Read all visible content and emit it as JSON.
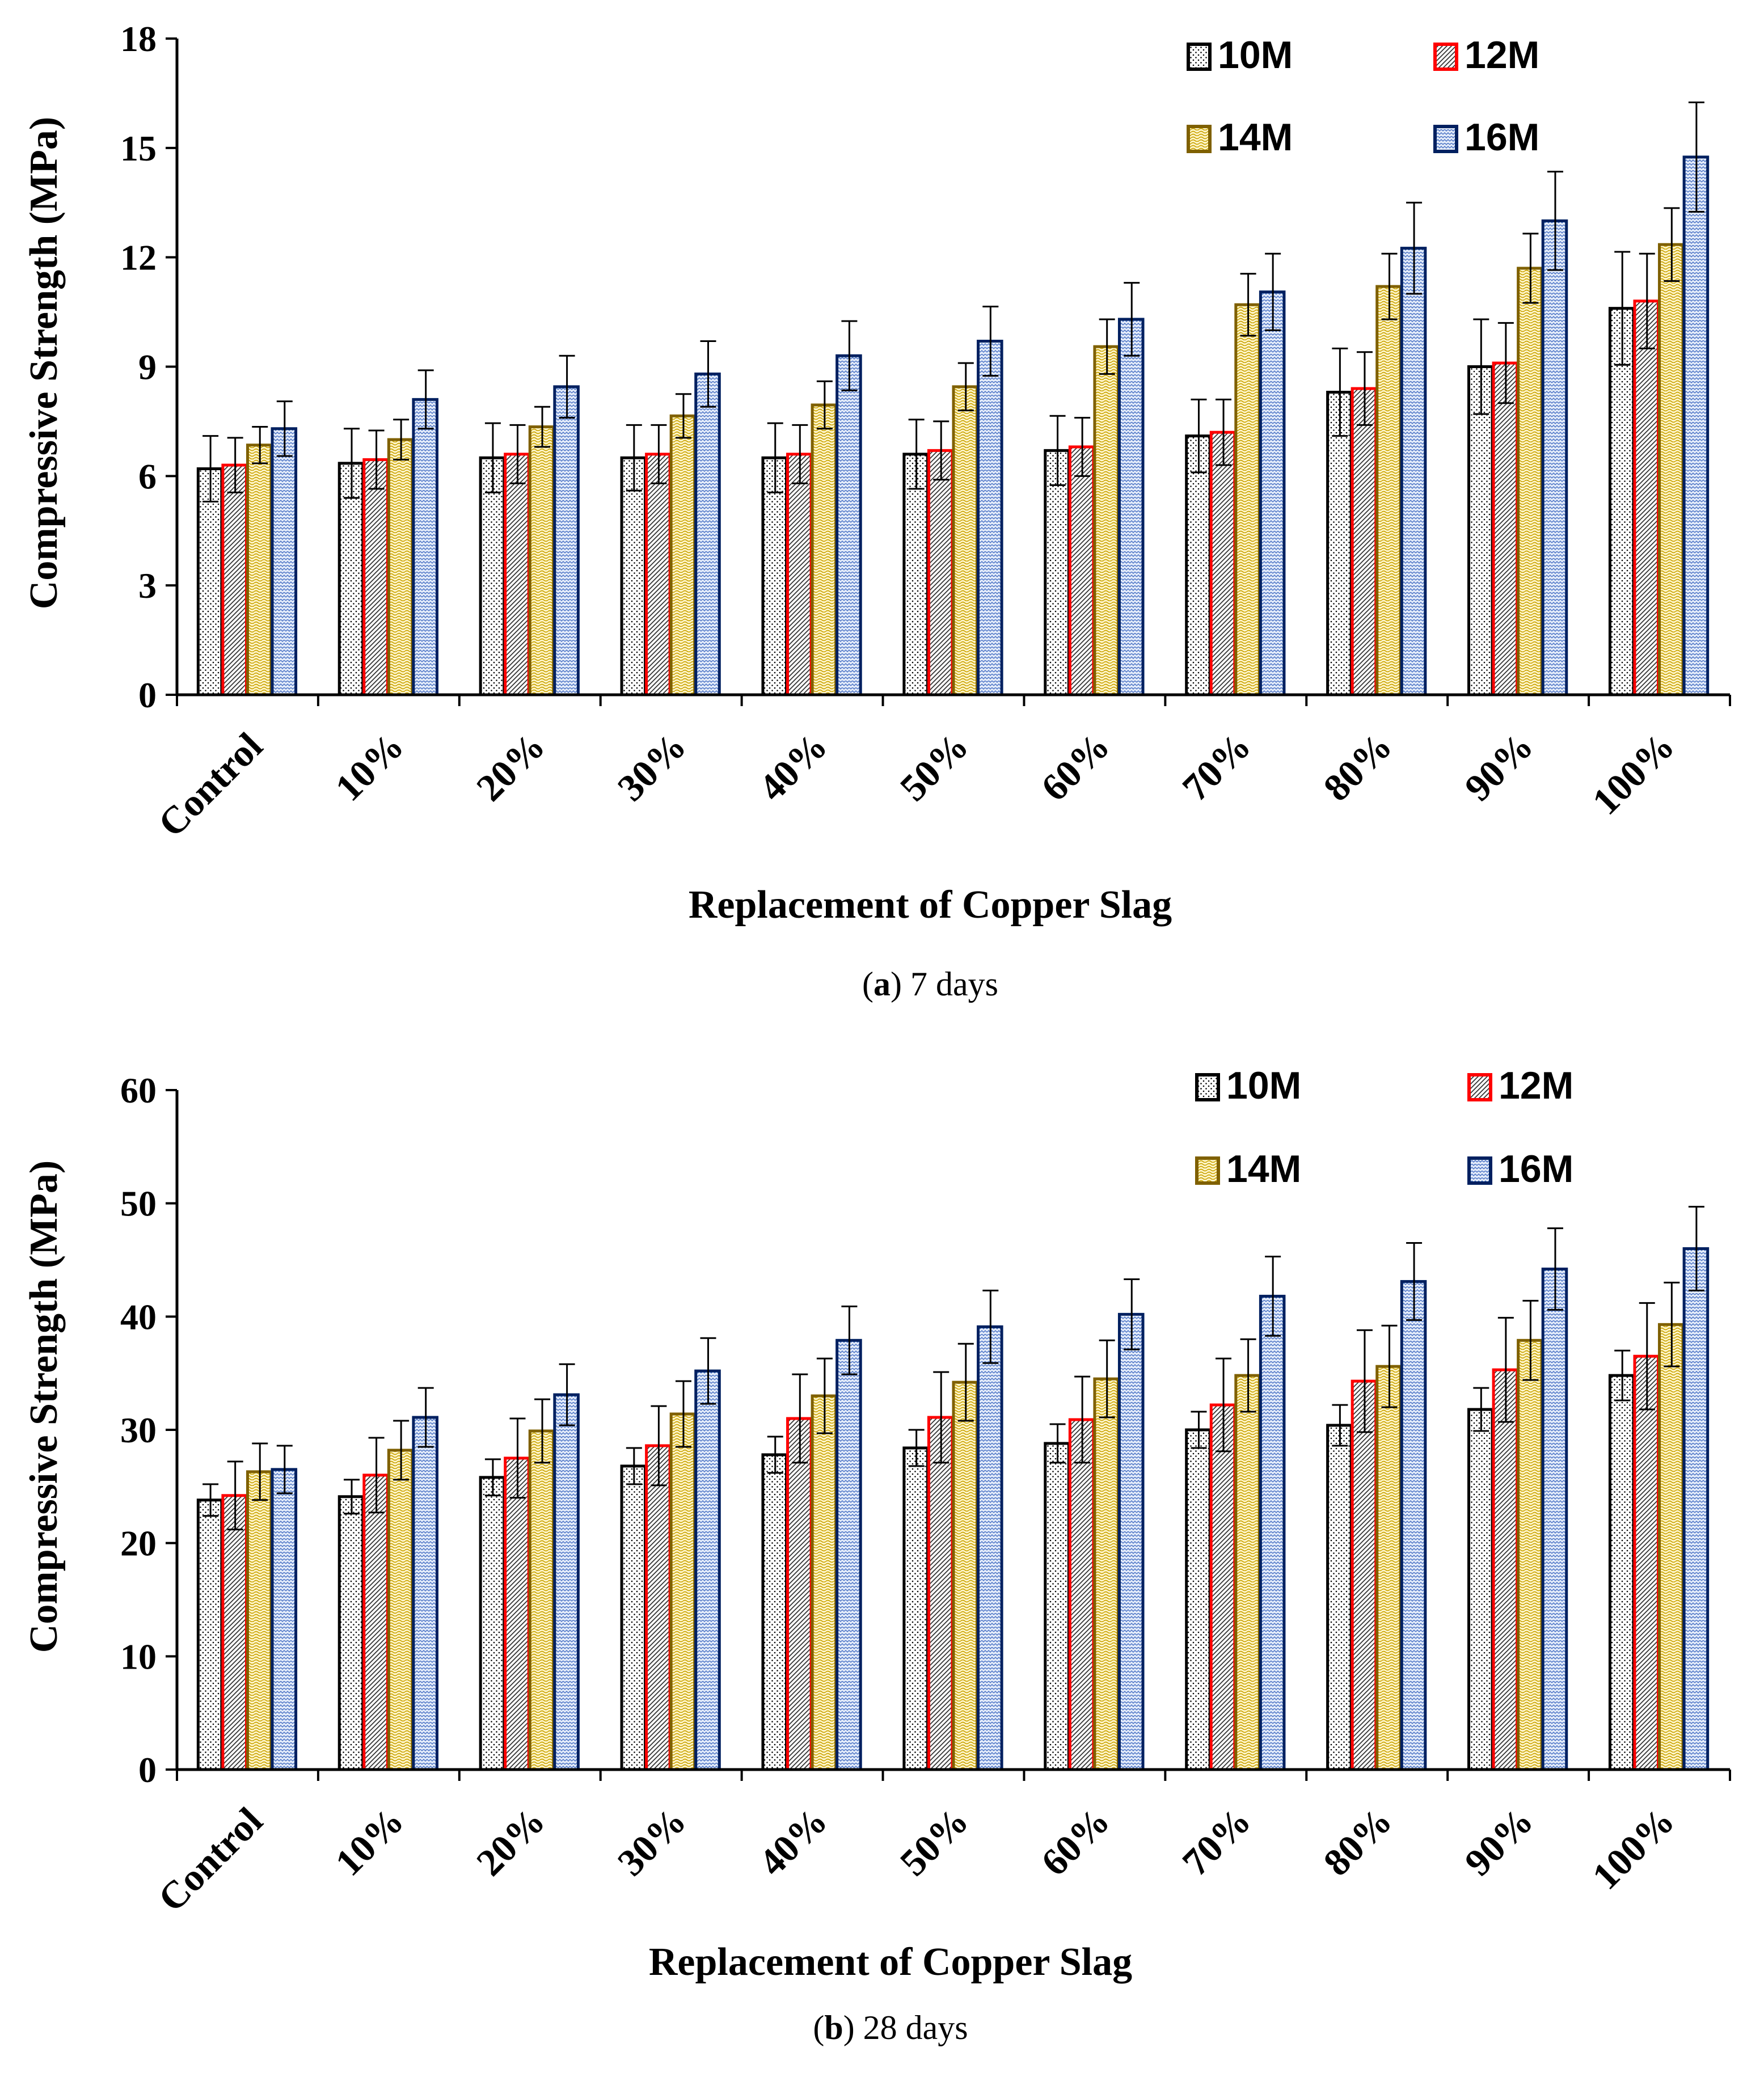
{
  "chart_data": [
    {
      "type": "bar",
      "caption_prefix": "(",
      "caption_letter": "a",
      "caption_rest": ") 7 days",
      "xlabel": "Replacement of Copper Slag",
      "ylabel": "Compressive Strength (MPa)",
      "ylim": [
        0,
        18
      ],
      "yticks": [
        "0",
        "3",
        "6",
        "9",
        "12",
        "15",
        "18"
      ],
      "legend_position": "top-right",
      "categories": [
        "Control",
        "10%",
        "20%",
        "30%",
        "40%",
        "50%",
        "60%",
        "70%",
        "80%",
        "90%",
        "100%"
      ],
      "series": [
        {
          "name": "10M",
          "color": "#000000",
          "pattern": "dots",
          "values": [
            6.2,
            6.35,
            6.5,
            6.5,
            6.5,
            6.6,
            6.7,
            7.1,
            8.3,
            9.0,
            10.6
          ],
          "errors": [
            0.9,
            0.95,
            0.95,
            0.9,
            0.95,
            0.95,
            0.95,
            1.0,
            1.2,
            1.3,
            1.55
          ]
        },
        {
          "name": "12M",
          "color": "#ff0000",
          "pattern": "diagonal",
          "values": [
            6.3,
            6.45,
            6.6,
            6.6,
            6.6,
            6.7,
            6.8,
            7.2,
            8.4,
            9.1,
            10.8
          ],
          "errors": [
            0.75,
            0.8,
            0.8,
            0.8,
            0.8,
            0.8,
            0.8,
            0.9,
            1.0,
            1.1,
            1.3
          ]
        },
        {
          "name": "14M",
          "color": "#7f6000",
          "pattern": "wave",
          "values": [
            6.85,
            7.0,
            7.35,
            7.65,
            7.95,
            8.45,
            9.55,
            10.7,
            11.2,
            11.7,
            12.35
          ],
          "errors": [
            0.5,
            0.55,
            0.55,
            0.6,
            0.65,
            0.65,
            0.75,
            0.85,
            0.9,
            0.95,
            1.0
          ]
        },
        {
          "name": "16M",
          "color": "#002060",
          "pattern": "zigzag",
          "values": [
            7.3,
            8.1,
            8.45,
            8.8,
            9.3,
            9.7,
            10.3,
            11.05,
            12.25,
            13.0,
            14.75
          ],
          "errors": [
            0.75,
            0.8,
            0.85,
            0.9,
            0.95,
            0.95,
            1.0,
            1.05,
            1.25,
            1.35,
            1.5
          ]
        }
      ]
    },
    {
      "type": "bar",
      "caption_prefix": "(",
      "caption_letter": "b",
      "caption_rest": ") 28 days",
      "xlabel": "Replacement of Copper Slag",
      "ylabel": "Compressive Strength (MPa)",
      "ylim": [
        0,
        60
      ],
      "yticks": [
        "0",
        "10",
        "20",
        "30",
        "40",
        "50",
        "60"
      ],
      "legend_position": "top-right",
      "categories": [
        "Control",
        "10%",
        "20%",
        "30%",
        "40%",
        "50%",
        "60%",
        "70%",
        "80%",
        "90%",
        "100%"
      ],
      "series": [
        {
          "name": "10M",
          "color": "#000000",
          "pattern": "dots",
          "values": [
            23.8,
            24.1,
            25.8,
            26.8,
            27.8,
            28.4,
            28.8,
            30.0,
            30.4,
            31.8,
            34.8
          ],
          "errors": [
            1.4,
            1.5,
            1.6,
            1.6,
            1.6,
            1.6,
            1.7,
            1.6,
            1.8,
            1.9,
            2.2
          ]
        },
        {
          "name": "12M",
          "color": "#ff0000",
          "pattern": "diagonal",
          "values": [
            24.2,
            26.0,
            27.5,
            28.6,
            31.0,
            31.1,
            30.9,
            32.2,
            34.3,
            35.3,
            36.5
          ],
          "errors": [
            3.0,
            3.3,
            3.5,
            3.5,
            3.9,
            4.0,
            3.8,
            4.1,
            4.5,
            4.6,
            4.7
          ]
        },
        {
          "name": "14M",
          "color": "#7f6000",
          "pattern": "wave",
          "values": [
            26.3,
            28.2,
            29.9,
            31.4,
            33.0,
            34.2,
            34.5,
            34.8,
            35.6,
            37.9,
            39.3
          ],
          "errors": [
            2.5,
            2.6,
            2.8,
            2.9,
            3.3,
            3.4,
            3.4,
            3.2,
            3.6,
            3.5,
            3.7
          ]
        },
        {
          "name": "16M",
          "color": "#002060",
          "pattern": "zigzag",
          "values": [
            26.5,
            31.1,
            33.1,
            35.2,
            37.9,
            39.1,
            40.2,
            41.8,
            43.1,
            44.2,
            46.0
          ],
          "errors": [
            2.1,
            2.6,
            2.7,
            2.9,
            3.0,
            3.2,
            3.1,
            3.5,
            3.4,
            3.6,
            3.7
          ]
        }
      ]
    }
  ]
}
